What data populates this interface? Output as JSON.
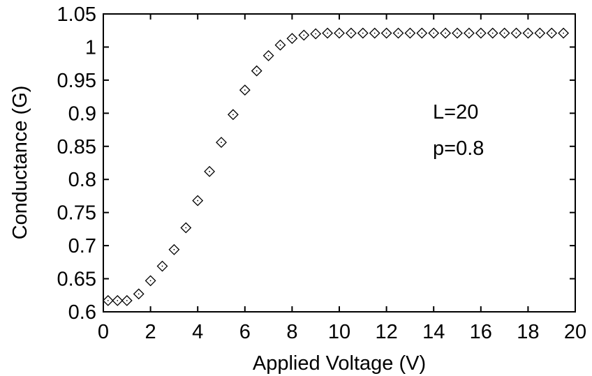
{
  "chart_data": {
    "type": "scatter",
    "title": "",
    "xlabel": "Applied Voltage (V)",
    "ylabel": "Conductance (G)",
    "xlim": [
      0,
      20
    ],
    "ylim": [
      0.6,
      1.05
    ],
    "x_ticks": [
      0,
      2,
      4,
      6,
      8,
      10,
      12,
      14,
      16,
      18,
      20
    ],
    "x_tick_labels": [
      "0",
      "2",
      "4",
      "6",
      "8",
      "10",
      "12",
      "14",
      "16",
      "18",
      "20"
    ],
    "y_ticks": [
      0.6,
      0.65,
      0.7,
      0.75,
      0.8,
      0.85,
      0.9,
      0.95,
      1.0,
      1.05
    ],
    "y_tick_labels": [
      "0.6",
      "0.65",
      "0.7",
      "0.75",
      "0.8",
      "0.85",
      "0.9",
      "0.95",
      "1",
      "1.05"
    ],
    "grid": false,
    "marker": "diamond-open",
    "annotations": [
      "L=20",
      "p=0.8"
    ],
    "series": [
      {
        "x": [
          0.2,
          0.6,
          1.0,
          1.5,
          2.0,
          2.5,
          3.0,
          3.5,
          4.0,
          4.5,
          5.0,
          5.5,
          6.0,
          6.5,
          7.0,
          7.5,
          8.0,
          8.5,
          9.0,
          9.5,
          10.0,
          10.5,
          11.0,
          11.5,
          12.0,
          12.5,
          13.0,
          13.5,
          14.0,
          14.5,
          15.0,
          15.5,
          16.0,
          16.5,
          17.0,
          17.5,
          18.0,
          18.5,
          19.0,
          19.5
        ],
        "y": [
          0.617,
          0.617,
          0.617,
          0.627,
          0.647,
          0.669,
          0.694,
          0.727,
          0.768,
          0.812,
          0.856,
          0.898,
          0.935,
          0.964,
          0.987,
          1.003,
          1.013,
          1.018,
          1.02,
          1.021,
          1.021,
          1.021,
          1.021,
          1.021,
          1.021,
          1.021,
          1.021,
          1.021,
          1.021,
          1.021,
          1.021,
          1.021,
          1.021,
          1.021,
          1.021,
          1.021,
          1.021,
          1.021,
          1.021,
          1.021
        ]
      }
    ]
  }
}
